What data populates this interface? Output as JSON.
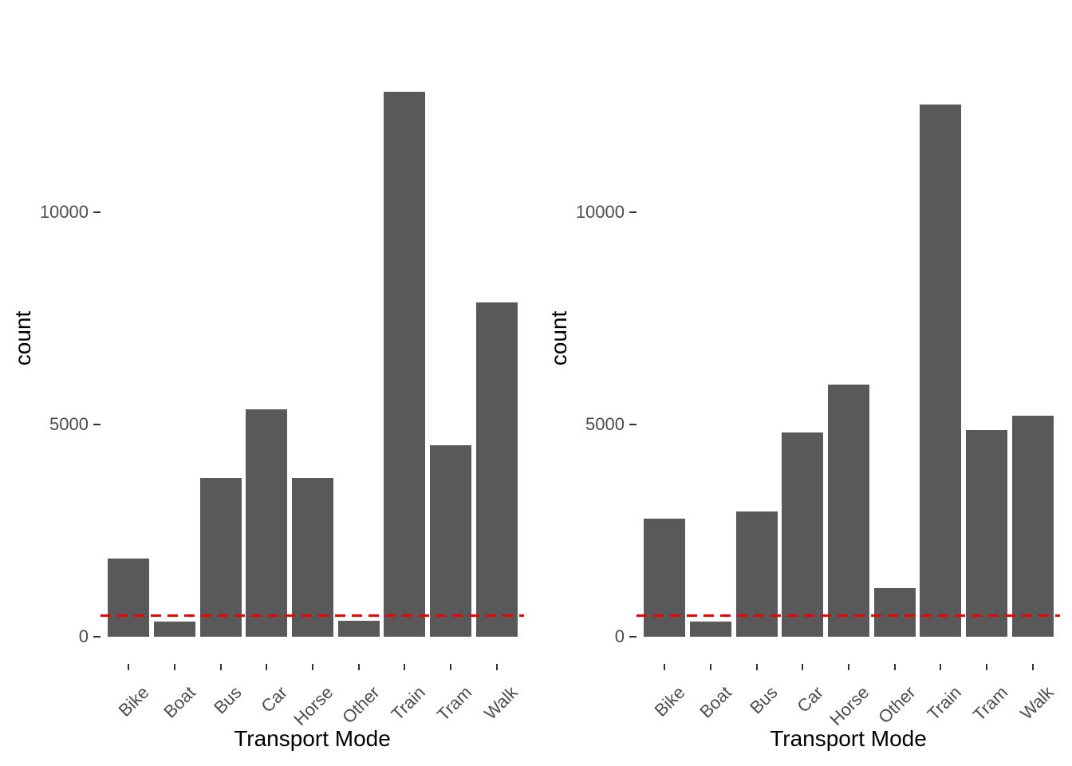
{
  "figure": {
    "background_color": "#ffffff",
    "bar_color": "#595959",
    "axis_text_color": "#4d4d4d",
    "axis_title_color": "#000000",
    "tick_mark_color": "#333333",
    "reference_line_color": "#ee0000"
  },
  "chart_data": [
    {
      "type": "bar",
      "title": "",
      "xlabel": "Transport Mode",
      "ylabel": "count",
      "categories": [
        "Bike",
        "Boat",
        "Bus",
        "Car",
        "Horse",
        "Other",
        "Train",
        "Tram",
        "Walk"
      ],
      "values": [
        1850,
        350,
        3740,
        5360,
        3740,
        380,
        12830,
        4520,
        7870
      ],
      "y_ticks": [
        0,
        5000,
        10000
      ],
      "y_tick_labels": [
        "0",
        "5000",
        "10000"
      ],
      "ylim": [
        0,
        13500
      ],
      "grid": false,
      "legend": "none",
      "reference_line": {
        "y": 500,
        "style": "dashed",
        "color": "#ee0000"
      }
    },
    {
      "type": "bar",
      "title": "",
      "xlabel": "Transport Mode",
      "ylabel": "count",
      "categories": [
        "Bike",
        "Boat",
        "Bus",
        "Car",
        "Horse",
        "Other",
        "Train",
        "Tram",
        "Walk"
      ],
      "values": [
        2780,
        350,
        2960,
        4810,
        5940,
        1150,
        12540,
        4870,
        5210
      ],
      "y_ticks": [
        0,
        5000,
        10000
      ],
      "y_tick_labels": [
        "0",
        "5000",
        "10000"
      ],
      "ylim": [
        0,
        13500
      ],
      "grid": false,
      "legend": "none",
      "reference_line": {
        "y": 500,
        "style": "dashed",
        "color": "#ee0000"
      }
    }
  ]
}
